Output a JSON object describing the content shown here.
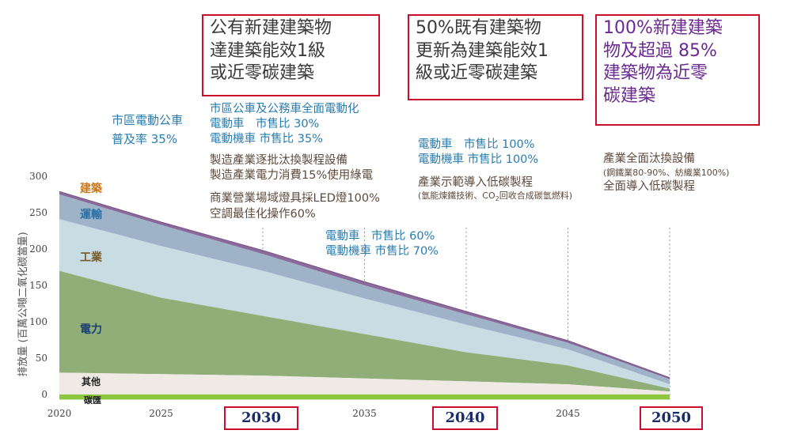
{
  "chart_data": {
    "type": "area",
    "ylabel": "排放量 (百萬公噸二氧化碳當量)",
    "x": [
      2020,
      2025,
      2030,
      2035,
      2040,
      2045,
      2050
    ],
    "ylim": [
      0,
      300
    ],
    "yticks": [
      "0",
      "50",
      "100",
      "150",
      "200",
      "250",
      "300"
    ],
    "xticks_plain": [
      {
        "value": 2020,
        "label": "2020"
      },
      {
        "value": 2025,
        "label": "2025"
      },
      {
        "value": 2035,
        "label": "2035"
      },
      {
        "value": 2045,
        "label": "2045"
      }
    ],
    "xticks_highlight": [
      {
        "value": 2030,
        "label": "2030"
      },
      {
        "value": 2040,
        "label": "2040"
      },
      {
        "value": 2050,
        "label": "2050"
      }
    ],
    "series_labels": {
      "building": "建築",
      "transport": "運輸",
      "industry": "工業",
      "power": "電力",
      "other": "其他",
      "sink": "碳匯"
    },
    "top_levels": {
      "other": [
        30,
        28,
        26,
        22,
        18,
        14,
        4
      ],
      "power": [
        170,
        133,
        108,
        83,
        58,
        40,
        8
      ],
      "industry": [
        241,
        204,
        170,
        132,
        96,
        62,
        14
      ],
      "transport": [
        275,
        233,
        193,
        150,
        110,
        71,
        21
      ],
      "building": [
        279,
        237,
        198,
        155,
        114,
        74,
        23
      ]
    },
    "sink_level": -7,
    "colors": {
      "building": "#8c6a9a",
      "transport": "#9fb3c8",
      "industry": "#c7dde3",
      "power": "#8fae78",
      "other": "#efebe4",
      "sink": "#8dc63f",
      "transport_label": "#2a6fa6",
      "building_label": "#c8781e",
      "industry_label": "#7a5a2a",
      "power_label": "#1e3f73",
      "other_label": "#222222"
    }
  },
  "milestones": {
    "m2030": [
      "公有新建建築物",
      "達建築能效1級",
      "或近零碳建築"
    ],
    "m2040": [
      "50%既有建築物",
      "更新為建築能效1",
      "級或近零碳建築"
    ],
    "m2050": [
      "100%新建建築",
      "物及超過 85%",
      "建築物為近零",
      "碳建築"
    ]
  },
  "notes": {
    "bus2025": [
      "市區電動公車",
      "普及率 35%"
    ],
    "ev2030": [
      "市區公車及公務車全面電動化",
      "電動車　市售比 30%",
      "電動機車 市售比 35%"
    ],
    "ind2030": [
      "製造產業逐批汰換製程設備",
      "製造產業電力消費15%使用綠電"
    ],
    "bldg2030": [
      "商業營業場域燈具採LED燈100%",
      "空調最佳化操作60%"
    ],
    "ev2035": [
      "電動車　市售比 60%",
      "電動機車 市售比 70%"
    ],
    "ev2040": [
      "電動車　市售比 100%",
      "電動機車 市售比 100%"
    ],
    "ind2040_title": "產業示範導入低碳製程",
    "ind2040_sub_a": "(氫能煉鐵技術、CO",
    "ind2040_sub_sub": "2",
    "ind2040_sub_b": "回收合成碳氫燃料)",
    "ind2050_title": "產業全面汰換設備",
    "ind2050_sub": "(鋼鐵業80-90%、紡織業100%)",
    "ind2050_line3": "全面導入低碳製程"
  }
}
